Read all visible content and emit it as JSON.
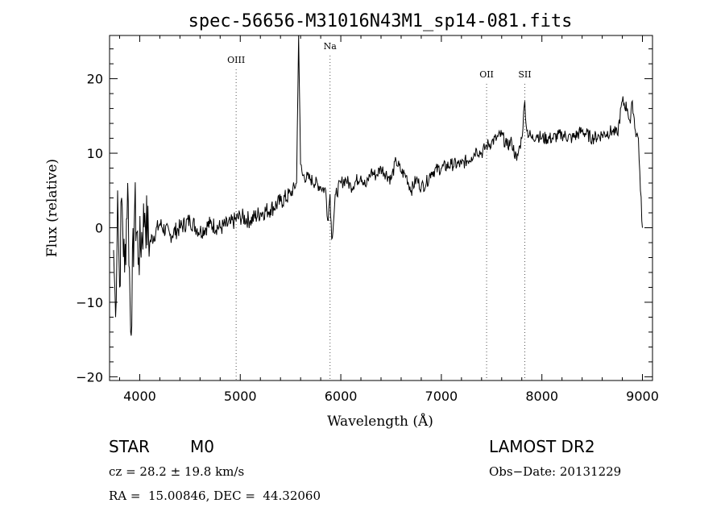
{
  "chart_data": {
    "type": "line",
    "title": "spec-56656-M31016N43M1_sp14-081.fits",
    "xlabel": "Wavelength (Å)",
    "ylabel": "Flux (relative)",
    "xlim": [
      3700,
      9100
    ],
    "ylim": [
      -20.5,
      25.8
    ],
    "xticks": [
      4000,
      5000,
      6000,
      7000,
      8000,
      9000
    ],
    "yticks": [
      -20,
      -10,
      0,
      10,
      20
    ],
    "ytick_labels": [
      "−20",
      "−10",
      "0",
      "10",
      "20"
    ],
    "grid": false,
    "line_markers": [
      {
        "label": "OIII",
        "x": 4959
      },
      {
        "label": "Na",
        "x": 5893
      },
      {
        "label": "OII",
        "x": 7450
      },
      {
        "label": "SII",
        "x": 7830
      }
    ],
    "series": [
      {
        "x": [
          3740,
          3760,
          3780,
          3800,
          3820,
          3850,
          3880,
          3910,
          3950,
          3990,
          4050,
          4100,
          4200,
          4300,
          4400,
          4500,
          4600,
          4700,
          4800,
          4900,
          5000,
          5100,
          5200,
          5300,
          5400,
          5500,
          5560,
          5580,
          5600,
          5620,
          5700,
          5800,
          5850,
          5870,
          5893,
          5910,
          5950,
          6000,
          6050,
          6100,
          6200,
          6250,
          6300,
          6350,
          6400,
          6500,
          6550,
          6600,
          6650,
          6700,
          6750,
          6800,
          6850,
          6900,
          7000,
          7100,
          7200,
          7300,
          7350,
          7400,
          7450,
          7500,
          7550,
          7600,
          7650,
          7700,
          7750,
          7780,
          7800,
          7830,
          7850,
          7900,
          7950,
          8000,
          8100,
          8200,
          8300,
          8400,
          8500,
          8600,
          8700,
          8750,
          8800,
          8850,
          8880,
          8900,
          8930,
          8960,
          8980,
          9000
        ],
        "y": [
          -3,
          -12,
          5,
          -8,
          4,
          -6,
          6,
          -14,
          3,
          -4,
          2,
          -2,
          0.5,
          -1,
          0,
          1,
          -0.5,
          0.5,
          0,
          0.5,
          1.5,
          1,
          2,
          2.5,
          3.5,
          4.5,
          6,
          25.8,
          8.5,
          7,
          6.5,
          5.5,
          5,
          1,
          4.5,
          -1.5,
          4.5,
          6,
          6.5,
          5.5,
          7,
          5.5,
          7.5,
          7,
          8,
          6.5,
          9,
          7.5,
          7,
          5,
          6.5,
          5.5,
          6,
          7.5,
          8,
          8.5,
          8.5,
          9.5,
          10.5,
          10,
          11,
          11.5,
          12,
          12.5,
          11,
          11.5,
          9,
          11,
          12,
          17,
          13,
          12,
          12.5,
          12,
          12,
          12.5,
          12,
          13,
          12,
          12.5,
          13,
          12.5,
          17,
          16,
          14,
          17,
          13,
          12,
          5,
          0
        ]
      }
    ]
  },
  "info": {
    "class": "STAR",
    "subclass": "M0",
    "cz": "cz = 28.2 ± 19.8 km/s",
    "coords": "RA =  15.00846, DEC =  44.32060",
    "survey": "LAMOST DR2",
    "obs_date": "Obs−Date: 20131229"
  }
}
